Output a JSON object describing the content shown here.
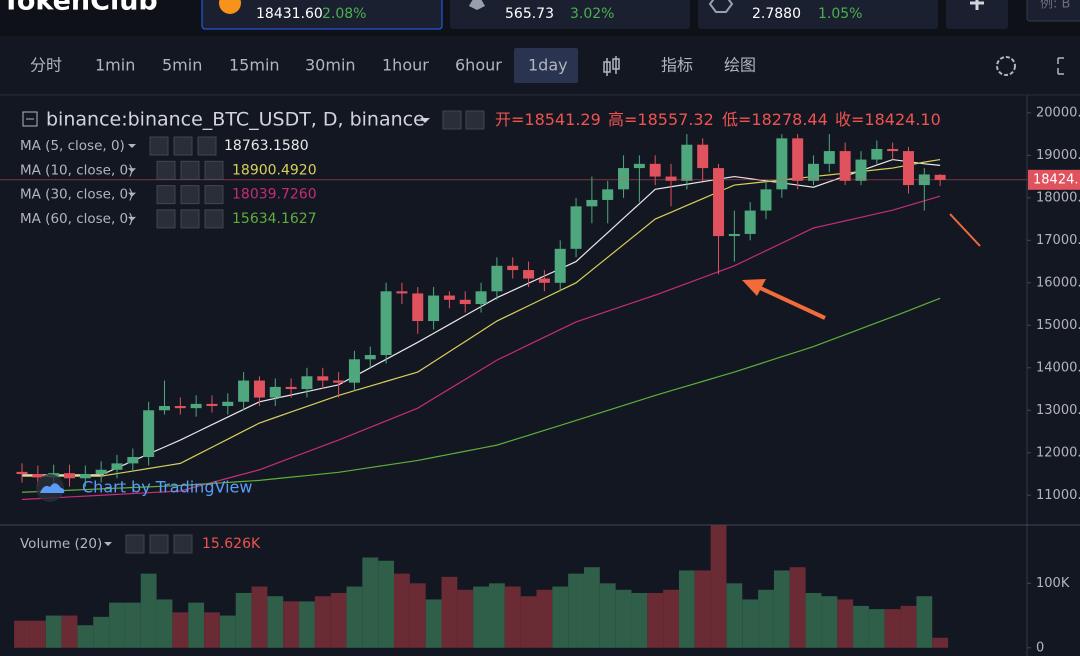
{
  "header": {
    "logo": "TokenClub",
    "tickers": [
      {
        "price": "18431.60",
        "change": "2.08%"
      },
      {
        "price": "565.73",
        "change": "3.02%"
      },
      {
        "price": "2.7880",
        "change": "1.05%"
      }
    ],
    "search_placeholder": "例: B"
  },
  "toolbar": {
    "intervals": [
      "分时",
      "1min",
      "5min",
      "15min",
      "30min",
      "1hour",
      "6hour",
      "1day"
    ],
    "indicators": "指标",
    "drawing": "绘图"
  },
  "chart_data": [
    {
      "type": "candlestick",
      "title": "binance:binance_BTC_USDT, D, binance",
      "ohlc_prefixes": [
        "开=",
        "高=",
        "低=",
        "收="
      ],
      "close_label": "18424.10",
      "up_color": "#4fa87d",
      "down_color": "#e0525d",
      "open": [
        11550,
        11500,
        11420,
        11520,
        11400,
        11500,
        11600,
        11750,
        11900,
        13000,
        13100,
        13050,
        13150,
        13100,
        13200,
        13700,
        13300,
        13550,
        13500,
        13800,
        13700,
        13650,
        14200,
        14300,
        15800,
        15750,
        15100,
        15700,
        15600,
        15500,
        15800,
        16400,
        16300,
        16100,
        16000,
        16800,
        17800,
        17950,
        18200,
        18700,
        18800,
        18500,
        18400,
        19250,
        18700,
        17100,
        17150,
        17700,
        18200,
        19400,
        18400,
        18800,
        19100,
        18400,
        18900,
        19150,
        19100,
        18300,
        18541.29
      ],
      "high": [
        11750,
        11700,
        11720,
        11720,
        11700,
        11800,
        11950,
        12100,
        13200,
        13700,
        13300,
        13350,
        13350,
        13400,
        13900,
        13800,
        13750,
        13750,
        14000,
        14000,
        13900,
        14400,
        14500,
        16000,
        16000,
        15900,
        15900,
        15800,
        15800,
        16000,
        16600,
        16600,
        16500,
        16300,
        17000,
        18000,
        18500,
        18400,
        19000,
        19000,
        19000,
        18800,
        19500,
        19400,
        18800,
        17700,
        17900,
        18400,
        19500,
        19500,
        19000,
        19500,
        19300,
        19100,
        19350,
        19300,
        19200,
        18700,
        18557.32
      ],
      "low": [
        11300,
        11220,
        11220,
        11200,
        11200,
        11300,
        11400,
        11550,
        11700,
        12900,
        12900,
        12850,
        12950,
        12900,
        13000,
        13100,
        13100,
        13300,
        13300,
        13500,
        13300,
        13450,
        14000,
        14100,
        15500,
        14800,
        14900,
        15400,
        15300,
        15300,
        15600,
        16100,
        15900,
        15800,
        15800,
        16600,
        17400,
        17400,
        18000,
        17900,
        18300,
        17800,
        18200,
        18400,
        16200,
        16500,
        17000,
        17500,
        18000,
        18200,
        18300,
        18600,
        18300,
        18300,
        18800,
        18900,
        18100,
        17700,
        18278.44
      ],
      "close": [
        11500,
        11420,
        11520,
        11400,
        11500,
        11600,
        11750,
        11900,
        13000,
        13100,
        13050,
        13150,
        13100,
        13200,
        13700,
        13300,
        13550,
        13500,
        13800,
        13700,
        13650,
        14200,
        14300,
        15800,
        15750,
        15100,
        15700,
        15600,
        15500,
        15800,
        16400,
        16300,
        16100,
        16000,
        16800,
        17800,
        17950,
        18200,
        18700,
        18800,
        18500,
        18400,
        19250,
        18700,
        17100,
        17150,
        17700,
        18200,
        19400,
        18400,
        18800,
        19100,
        18400,
        18900,
        19150,
        19100,
        18300,
        18550,
        18424.1
      ],
      "series": [
        {
          "name": "MA (5, close, 0)",
          "color": "#e8e8e8",
          "legend_value": "18763.1580",
          "values": [
            11480,
            11480,
            11480,
            11480,
            11480,
            11480,
            11644,
            11808,
            11972,
            12136,
            12300,
            12480,
            12660,
            12840,
            13020,
            13200,
            13280,
            13360,
            13440,
            13520,
            13600,
            13800,
            14000,
            14200,
            14400,
            14600,
            14810,
            15020,
            15230,
            15440,
            15650,
            15820,
            15990,
            16160,
            16330,
            16500,
            16840,
            17180,
            17520,
            17860,
            18200,
            18260,
            18320,
            18380,
            18440,
            18500,
            18450,
            18400,
            18350,
            18300,
            18250,
            18380,
            18510,
            18640,
            18770,
            18900,
            18850,
            18800,
            18763.158
          ]
        },
        {
          "name": "MA (10, close, 0)",
          "color": "#d8d05a",
          "legend_value": "18900.4920",
          "values": [
            11450,
            11450,
            11450,
            11450,
            11450,
            11450,
            11510,
            11570,
            11630,
            11690,
            11750,
            11940,
            12130,
            12320,
            12510,
            12700,
            12830,
            12960,
            13090,
            13220,
            13350,
            13460,
            13570,
            13680,
            13790,
            13900,
            14140,
            14380,
            14620,
            14860,
            15100,
            15280,
            15460,
            15640,
            15820,
            16000,
            16300,
            16600,
            16900,
            17200,
            17500,
            17660,
            17820,
            17980,
            18140,
            18300,
            18340,
            18380,
            18420,
            18460,
            18500,
            18540,
            18580,
            18620,
            18660,
            18700,
            18770,
            18840,
            18900.492
          ]
        },
        {
          "name": "MA (30, close, 0)",
          "color": "#c42d78",
          "legend_value": "18039.7260",
          "values": [
            10900,
            10920,
            10940,
            10960,
            10980,
            11000,
            11020,
            11040,
            11060,
            11080,
            11100,
            11200,
            11300,
            11400,
            11500,
            11600,
            11740,
            11880,
            12020,
            12160,
            12300,
            12450,
            12600,
            12750,
            12900,
            13050,
            13276,
            13502,
            13728,
            13954,
            14180,
            14360,
            14540,
            14720,
            14900,
            15080,
            15206,
            15332,
            15458,
            15584,
            15710,
            15848,
            15986,
            16124,
            16262,
            16400,
            16578,
            16756,
            16934,
            17112,
            17290,
            17374,
            17458,
            17542,
            17626,
            17710,
            17820,
            17930,
            18039.726
          ]
        },
        {
          "name": "MA (60, close, 0)",
          "color": "#5fae3a",
          "legend_value": "15634.1627",
          "values": [
            11070,
            11086,
            11102,
            11118,
            11134,
            11150,
            11166,
            11182,
            11198,
            11214,
            11230,
            11254,
            11278,
            11302,
            11326,
            11350,
            11388,
            11426,
            11464,
            11502,
            11540,
            11596,
            11652,
            11708,
            11764,
            11820,
            11892,
            11964,
            12036,
            12108,
            12180,
            12296,
            12412,
            12528,
            12644,
            12760,
            12878,
            12996,
            13114,
            13232,
            13350,
            13460,
            13570,
            13680,
            13790,
            13900,
            14020,
            14140,
            14260,
            14380,
            14500,
            14640,
            14780,
            14920,
            15060,
            15200,
            15345,
            15490,
            15634.1627
          ]
        }
      ],
      "ylim": [
        10300,
        20420
      ],
      "yticks": [
        {
          "value": 11000,
          "label": "11000.00"
        },
        {
          "value": 12000,
          "label": "12000.00"
        },
        {
          "value": 13000,
          "label": "13000.00"
        },
        {
          "value": 14000,
          "label": "14000.00"
        },
        {
          "value": 15000,
          "label": "15000.00"
        },
        {
          "value": 16000,
          "label": "16000.00"
        },
        {
          "value": 17000,
          "label": "17000.00"
        },
        {
          "value": 18000,
          "label": "18000.00"
        },
        {
          "value": 19000,
          "label": "19000.00"
        },
        {
          "value": 20000,
          "label": "20000.00"
        }
      ],
      "grid": false,
      "watermark": "Chart by TradingView"
    },
    {
      "type": "bar",
      "title": "Volume (20)",
      "legend_value": "15.626K",
      "up_color": "#2f5e49",
      "down_color": "#6a2b34",
      "values": [
        42000,
        42000,
        50000,
        50000,
        35000,
        48000,
        70000,
        70000,
        115000,
        75000,
        55000,
        70000,
        55000,
        50000,
        85000,
        95000,
        80000,
        72000,
        72000,
        80000,
        85000,
        95000,
        140000,
        135000,
        115000,
        100000,
        75000,
        110000,
        90000,
        95000,
        100000,
        95000,
        80000,
        90000,
        95000,
        115000,
        125000,
        100000,
        90000,
        85000,
        85000,
        90000,
        120000,
        120000,
        190000,
        100000,
        75000,
        90000,
        120000,
        125000,
        85000,
        80000,
        75000,
        65000,
        60000,
        60000,
        65000,
        80000,
        15626
      ],
      "ylim": [
        -12700,
        187300
      ],
      "yticks": [
        0,
        {
          "value": 100000,
          "label": "100K"
        }
      ]
    }
  ]
}
